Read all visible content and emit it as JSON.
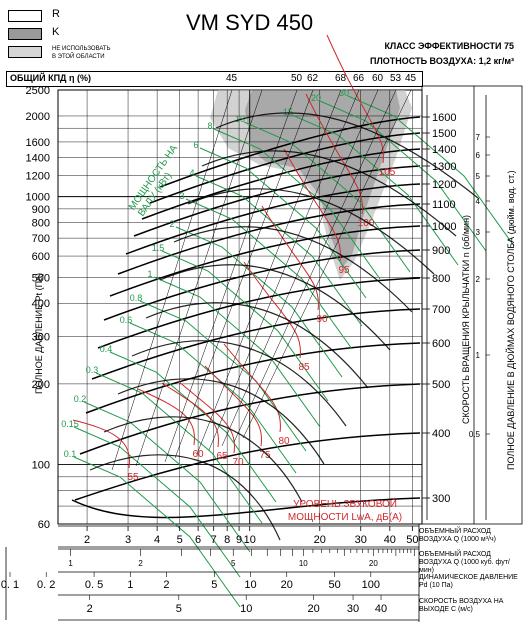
{
  "legend": {
    "items": [
      {
        "code": "R",
        "fill": "#ffffff"
      },
      {
        "code": "K",
        "fill": "#9a9a9a"
      },
      {
        "code": "",
        "fill": "#d6d6d6",
        "text_lines": [
          "НЕ ИСПОЛЬЗОВАТЬ",
          "В ЭТОЙ ОБЛАСТИ"
        ]
      }
    ]
  },
  "title": "VM SYD 450",
  "efficiency_class": "КЛАСС ЭФФЕКТИВНОСТИ 75",
  "air_density": "ПЛОТНОСТЬ ВОЗДУХА: 1,2 кг/м³",
  "chart_data": {
    "type": "fan-performance",
    "efficiency_axis": {
      "label": "ОБЩИЙ КПД η (%)",
      "ticks": [
        45,
        50,
        62,
        68,
        66,
        60,
        53,
        45
      ],
      "tick_x": [
        232,
        297,
        313,
        341,
        359,
        378,
        396,
        411
      ]
    },
    "y_axis": {
      "label": "ПОЛНОЕ ДАВЛЕНИЕ Pt (Па)",
      "scale": "log",
      "range": [
        60,
        2500
      ],
      "ticks": [
        2500,
        2000,
        1600,
        1400,
        1200,
        1000,
        900,
        800,
        700,
        600,
        500,
        400,
        300,
        200,
        100,
        60
      ]
    },
    "x_axis": {
      "label": "ОБЪЕМНЫЙ РАСХОД ВОЗДУХА Q (1000 м³/ч)",
      "scale": "log",
      "range": [
        1.5,
        55
      ],
      "ticks": [
        2,
        3,
        4,
        5,
        6,
        7,
        8,
        9,
        10,
        20,
        30,
        40,
        50
      ]
    },
    "speed_axis": {
      "label": "СКОРОСТЬ ВРАЩЕНИЯ КРЫЛЬЧАТКИ n (об/мин)",
      "ticks": [
        1600,
        1500,
        1400,
        1300,
        1200,
        1100,
        1000,
        900,
        800,
        700,
        600,
        500,
        400,
        300
      ]
    },
    "inch_axis": {
      "label": "ПОЛНОЕ ДАВЛЕНИЕ В ДЮЙМАХ ВОДЯНОГО СТОЛБА (дюйм. вод. ст.)",
      "ticks": [
        "7",
        "6",
        "5",
        "4",
        "3",
        "2",
        "1",
        "0.5"
      ]
    },
    "power_lines": {
      "label": "МОЩНОСТЬ НА ВАЛУ (кВт)",
      "color": "#1f9a4a",
      "values": [
        "0.1",
        "0.15",
        "0.2",
        "0.3",
        "0.4",
        "0.6",
        "0.8",
        "1",
        "1.5",
        "2",
        "3",
        "4",
        "6",
        "8",
        "10",
        "15",
        "20",
        "30"
      ]
    },
    "noise_lines": {
      "label": "УРОВЕНЬ ЗВУКОВОЙ МОЩНОСТИ LwA, дБ(А)",
      "color": "#d0282c",
      "values": [
        "55",
        "60",
        "65",
        "70",
        "75",
        "80",
        "85",
        "90",
        "95",
        "100",
        "105"
      ]
    },
    "bottom_scales": [
      {
        "label": "ОБЪЕМНЫЙ РАСХОД ВОЗДУХА Q (1000 м³/ч)",
        "ticks": [
          "2",
          "3",
          "4",
          "5",
          "6",
          "7",
          "8",
          "9",
          "10",
          "20",
          "30",
          "40",
          "50"
        ]
      },
      {
        "label": "ОБЪЕМНЫЙ РАСХОД ВОЗДУХА Q (1000 куб. фут/мин)",
        "ticks": [
          "1",
          "2",
          "5",
          "10",
          "20"
        ]
      },
      {
        "label": "ДИНАМИЧЕСКОЕ ДАВЛЕНИЕ Pd (10 Па)",
        "ticks": [
          "0. 1",
          "0. 2",
          "0. 5",
          "1",
          "2",
          "5",
          "10",
          "20",
          "50",
          "100"
        ]
      },
      {
        "label": "СКОРОСТЬ ВОЗДУХА НА ВЫХОДЕ С (м/с)",
        "ticks": [
          "2",
          "5",
          "10",
          "20",
          "30",
          "40"
        ]
      }
    ]
  }
}
